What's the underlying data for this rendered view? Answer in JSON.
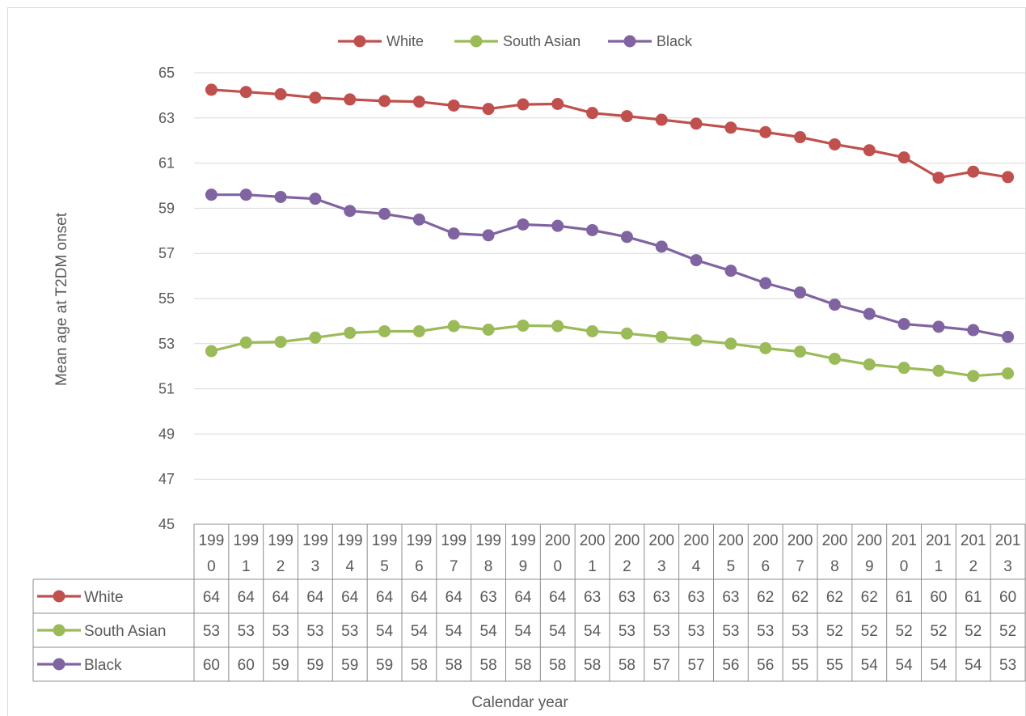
{
  "chart_data": {
    "type": "line",
    "title": "",
    "xlabel": "Calendar year",
    "ylabel": "Mean age at T2DM onset",
    "ylim": [
      45,
      65
    ],
    "yticks": [
      "45",
      "47",
      "49",
      "51",
      "53",
      "55",
      "57",
      "59",
      "61",
      "63",
      "65"
    ],
    "grid": true,
    "legend_position": "top",
    "categories": [
      [
        "199",
        "0"
      ],
      [
        "199",
        "1"
      ],
      [
        "199",
        "2"
      ],
      [
        "199",
        "3"
      ],
      [
        "199",
        "4"
      ],
      [
        "199",
        "5"
      ],
      [
        "199",
        "6"
      ],
      [
        "199",
        "7"
      ],
      [
        "199",
        "8"
      ],
      [
        "199",
        "9"
      ],
      [
        "200",
        "0"
      ],
      [
        "200",
        "1"
      ],
      [
        "200",
        "2"
      ],
      [
        "200",
        "3"
      ],
      [
        "200",
        "4"
      ],
      [
        "200",
        "5"
      ],
      [
        "200",
        "6"
      ],
      [
        "200",
        "7"
      ],
      [
        "200",
        "8"
      ],
      [
        "200",
        "9"
      ],
      [
        "201",
        "0"
      ],
      [
        "201",
        "1"
      ],
      [
        "201",
        "2"
      ],
      [
        "201",
        "3"
      ]
    ],
    "series": [
      {
        "name": "White",
        "color": "#C0504D",
        "values": [
          64.25,
          64.15,
          64.05,
          63.9,
          63.82,
          63.75,
          63.72,
          63.55,
          63.4,
          63.6,
          63.62,
          63.22,
          63.08,
          62.92,
          62.75,
          62.57,
          62.37,
          62.15,
          61.83,
          61.57,
          61.25,
          60.35,
          60.62,
          60.38
        ],
        "table": [
          "64",
          "64",
          "64",
          "64",
          "64",
          "64",
          "64",
          "64",
          "63",
          "64",
          "64",
          "63",
          "63",
          "63",
          "63",
          "63",
          "62",
          "62",
          "62",
          "62",
          "61",
          "60",
          "61",
          "60"
        ]
      },
      {
        "name": "South Asian",
        "color": "#9BBB59",
        "values": [
          52.67,
          53.05,
          53.08,
          53.27,
          53.48,
          53.55,
          53.55,
          53.78,
          53.62,
          53.8,
          53.78,
          53.55,
          53.45,
          53.3,
          53.15,
          53.0,
          52.8,
          52.65,
          52.33,
          52.08,
          51.93,
          51.8,
          51.57,
          51.68
        ],
        "table": [
          "53",
          "53",
          "53",
          "53",
          "53",
          "54",
          "54",
          "54",
          "54",
          "54",
          "54",
          "54",
          "53",
          "53",
          "53",
          "53",
          "53",
          "53",
          "52",
          "52",
          "52",
          "52",
          "52",
          "52"
        ]
      },
      {
        "name": "Black",
        "color": "#8064A2",
        "values": [
          59.6,
          59.6,
          59.5,
          59.42,
          58.88,
          58.75,
          58.5,
          57.88,
          57.8,
          58.28,
          58.22,
          58.03,
          57.73,
          57.3,
          56.7,
          56.23,
          55.68,
          55.27,
          54.73,
          54.32,
          53.87,
          53.75,
          53.6,
          53.3
        ],
        "table": [
          "60",
          "60",
          "59",
          "59",
          "59",
          "59",
          "58",
          "58",
          "58",
          "58",
          "58",
          "58",
          "58",
          "57",
          "57",
          "56",
          "56",
          "55",
          "55",
          "54",
          "54",
          "54",
          "54",
          "53"
        ]
      }
    ]
  }
}
